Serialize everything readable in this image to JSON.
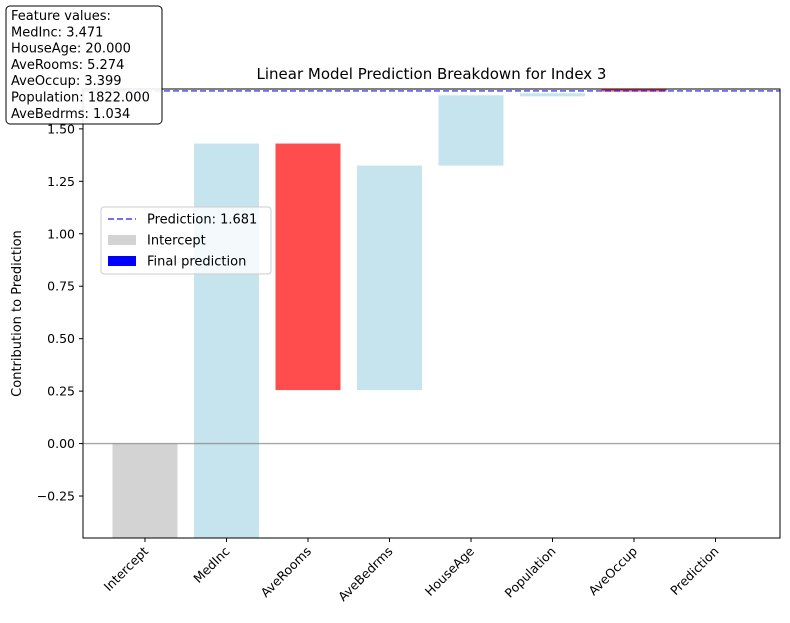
{
  "chart_data": {
    "type": "bar",
    "subtype": "waterfall",
    "title": "Linear Model Prediction Breakdown for Index 3",
    "xlabel": "",
    "ylabel": "Contribution to Prediction",
    "ylim": [
      -0.45,
      1.69
    ],
    "yticks": [
      -0.25,
      0.0,
      0.25,
      0.5,
      0.75,
      1.0,
      1.25,
      1.5
    ],
    "ytick_labels": [
      "−0.25",
      "0.00",
      "0.25",
      "0.50",
      "0.75",
      "1.00",
      "1.25",
      "1.50"
    ],
    "categories": [
      "Intercept",
      "MedInc",
      "AveRooms",
      "AveBedrms",
      "HouseAge",
      "Population",
      "AveOccup",
      "Prediction"
    ],
    "bars": [
      {
        "label": "Intercept",
        "bottom": -0.45,
        "top": 0.0,
        "kind": "intercept"
      },
      {
        "label": "MedInc",
        "bottom": -0.45,
        "top": 1.43,
        "kind": "positive"
      },
      {
        "label": "AveRooms",
        "bottom": 0.255,
        "top": 1.43,
        "kind": "negative"
      },
      {
        "label": "AveBedrms",
        "bottom": 0.255,
        "top": 1.325,
        "kind": "positive"
      },
      {
        "label": "HouseAge",
        "bottom": 1.325,
        "top": 1.66,
        "kind": "positive"
      },
      {
        "label": "Population",
        "bottom": 1.655,
        "top": 1.67,
        "kind": "positive"
      },
      {
        "label": "AveOccup",
        "bottom": 1.678,
        "top": 1.69,
        "kind": "negative"
      },
      {
        "label": "Prediction",
        "bottom": 1.681,
        "top": 1.681,
        "kind": "final"
      }
    ],
    "prediction_line": 1.681,
    "zero_line": 0.0,
    "grid": false,
    "legend": {
      "placement": "center-left",
      "entries": [
        {
          "label": "Prediction: 1.681",
          "type": "dashed-line"
        },
        {
          "label": "Intercept",
          "type": "patch"
        },
        {
          "label": "Final prediction",
          "type": "patch"
        }
      ]
    },
    "info_box": {
      "lines": [
        "Feature values:",
        "MedInc: 3.471",
        "HouseAge: 20.000",
        "AveRooms: 5.274",
        "AveOccup: 3.399",
        "Population: 1822.000",
        "AveBedrms: 1.034"
      ]
    },
    "colors": {
      "intercept": "#d3d3d3",
      "positive": "#add8e6",
      "negative": "#ff0000",
      "final": "#0000ff",
      "prediction_line": "#0000ff",
      "zero_line": "#808080"
    }
  }
}
